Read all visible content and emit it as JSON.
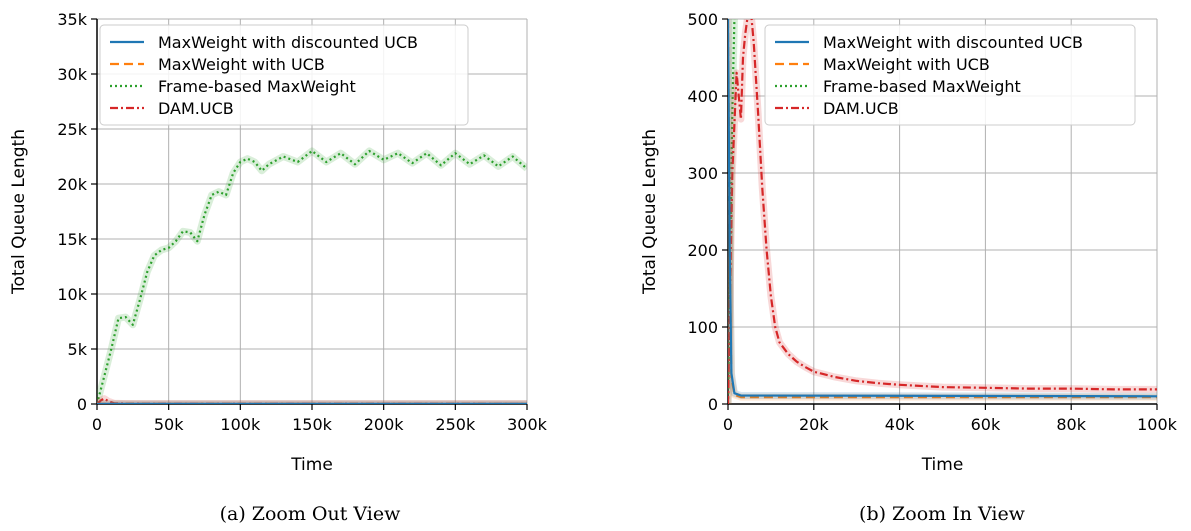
{
  "chart_data": [
    {
      "type": "line",
      "caption": "(a) Zoom Out View",
      "xlabel": "Time",
      "ylabel": "Total Queue Length",
      "xlim": [
        0,
        300000
      ],
      "ylim": [
        0,
        35000
      ],
      "xticks": [
        0,
        50000,
        100000,
        150000,
        200000,
        250000,
        300000
      ],
      "xtick_labels": [
        "0",
        "50k",
        "100k",
        "150k",
        "200k",
        "250k",
        "300k"
      ],
      "yticks": [
        0,
        5000,
        10000,
        15000,
        20000,
        25000,
        30000,
        35000
      ],
      "ytick_labels": [
        "0",
        "5k",
        "10k",
        "15k",
        "20k",
        "25k",
        "30k",
        "35k"
      ],
      "grid": true,
      "legend_position": "top-left",
      "series": [
        {
          "name": "MaxWeight with discounted UCB",
          "color": "#1f77b4",
          "style": "solid",
          "x": [
            0,
            5000,
            300000
          ],
          "y": [
            0,
            10,
            10
          ]
        },
        {
          "name": "MaxWeight with UCB",
          "color": "#ff7f0e",
          "style": "dashed",
          "x": [
            0,
            5000,
            300000
          ],
          "y": [
            0,
            10,
            10
          ]
        },
        {
          "name": "Frame-based MaxWeight",
          "color": "#2ca02c",
          "style": "dotted",
          "x": [
            0,
            5000,
            10000,
            15000,
            20000,
            25000,
            30000,
            35000,
            40000,
            45000,
            50000,
            55000,
            60000,
            65000,
            70000,
            75000,
            80000,
            85000,
            90000,
            95000,
            100000,
            105000,
            110000,
            115000,
            120000,
            130000,
            140000,
            150000,
            160000,
            170000,
            180000,
            190000,
            200000,
            210000,
            220000,
            230000,
            240000,
            250000,
            260000,
            270000,
            280000,
            290000,
            300000
          ],
          "y": [
            0,
            2500,
            5000,
            7800,
            7900,
            7200,
            9500,
            12000,
            13500,
            14000,
            14200,
            14800,
            15700,
            15600,
            14800,
            17200,
            19000,
            19300,
            19000,
            21000,
            22000,
            22300,
            22000,
            21200,
            21800,
            22500,
            22000,
            23000,
            22000,
            22800,
            21800,
            23000,
            22200,
            22800,
            21900,
            22800,
            21700,
            22800,
            21800,
            22600,
            21600,
            22500,
            21400
          ]
        },
        {
          "name": "DAM.UCB",
          "color": "#d62728",
          "style": "dashdot",
          "x": [
            0,
            3000,
            5000,
            8000,
            12000,
            20000,
            40000,
            300000
          ],
          "y": [
            0,
            350,
            490,
            250,
            60,
            40,
            25,
            20
          ]
        }
      ]
    },
    {
      "type": "line",
      "caption": "(b) Zoom In View",
      "xlabel": "Time",
      "ylabel": "Total Queue Length",
      "xlim": [
        0,
        100000
      ],
      "ylim": [
        0,
        500
      ],
      "xticks": [
        0,
        20000,
        40000,
        60000,
        80000,
        100000
      ],
      "xtick_labels": [
        "0",
        "20k",
        "40k",
        "60k",
        "80k",
        "100k"
      ],
      "yticks": [
        0,
        100,
        200,
        300,
        400,
        500
      ],
      "ytick_labels": [
        "0",
        "100",
        "200",
        "300",
        "400",
        "500"
      ],
      "grid": true,
      "legend_position": "top-right",
      "series": [
        {
          "name": "MaxWeight with discounted UCB",
          "color": "#1f77b4",
          "style": "solid",
          "x": [
            0,
            400,
            800,
            1500,
            3000,
            100000
          ],
          "y": [
            500,
            200,
            40,
            14,
            11,
            10
          ]
        },
        {
          "name": "MaxWeight with UCB",
          "color": "#ff7f0e",
          "style": "dashed",
          "x": [
            0,
            400,
            800,
            1500,
            3000,
            100000
          ],
          "y": [
            500,
            200,
            35,
            12,
            9,
            9
          ]
        },
        {
          "name": "Frame-based MaxWeight",
          "color": "#2ca02c",
          "style": "dotted",
          "x": [
            0,
            500,
            1000,
            1500
          ],
          "y": [
            0,
            180,
            380,
            500
          ]
        },
        {
          "name": "DAM.UCB",
          "color": "#d62728",
          "style": "dashdot",
          "x": [
            0,
            1000,
            2000,
            3000,
            3500,
            4000,
            4500,
            5000,
            5500,
            6000,
            7000,
            8000,
            9000,
            10000,
            11000,
            12000,
            14000,
            16000,
            18000,
            20000,
            25000,
            30000,
            35000,
            40000,
            50000,
            60000,
            70000,
            80000,
            90000,
            100000
          ],
          "y": [
            0,
            300,
            430,
            370,
            450,
            480,
            500,
            505,
            500,
            470,
            380,
            280,
            200,
            140,
            100,
            80,
            65,
            55,
            48,
            42,
            35,
            30,
            27,
            25,
            22,
            21,
            20,
            20,
            19,
            19
          ]
        }
      ]
    }
  ]
}
